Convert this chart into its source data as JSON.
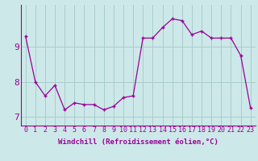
{
  "x": [
    0,
    1,
    2,
    3,
    4,
    5,
    6,
    7,
    8,
    9,
    10,
    11,
    12,
    13,
    14,
    15,
    16,
    17,
    18,
    19,
    20,
    21,
    22,
    23
  ],
  "y": [
    9.3,
    8.0,
    7.6,
    7.9,
    7.2,
    7.4,
    7.35,
    7.35,
    7.2,
    7.3,
    7.55,
    7.6,
    9.25,
    9.25,
    9.55,
    9.8,
    9.75,
    9.35,
    9.45,
    9.25,
    9.25,
    9.25,
    8.75,
    7.25
  ],
  "line_color": "#990099",
  "marker": "+",
  "xlabel": "Windchill (Refroidissement éolien,°C)",
  "xlabel_fontsize": 6.5,
  "xtick_labels": [
    "0",
    "1",
    "2",
    "3",
    "4",
    "5",
    "6",
    "7",
    "8",
    "9",
    "10",
    "11",
    "12",
    "13",
    "14",
    "15",
    "16",
    "17",
    "18",
    "19",
    "20",
    "21",
    "22",
    "23"
  ],
  "ytick_labels": [
    "7",
    "8",
    "9"
  ],
  "yticks": [
    7,
    8,
    9
  ],
  "ylim": [
    6.75,
    10.2
  ],
  "xlim": [
    -0.5,
    23.5
  ],
  "bg_color": "#cde8e8",
  "grid_color": "#aacccc",
  "tick_fontsize": 6,
  "ytick_fontsize": 8
}
